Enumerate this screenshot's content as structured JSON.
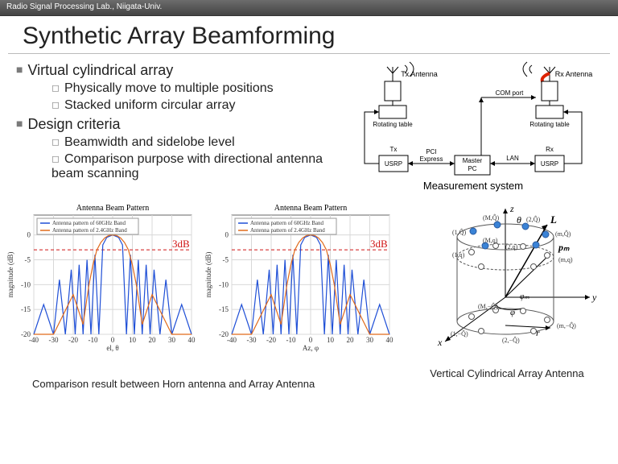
{
  "header": {
    "lab": "Radio Signal Processing Lab., Niigata-Univ."
  },
  "title": "Synthetic Array Beamforming",
  "bullets": [
    {
      "text": "Virtual cylindrical array",
      "sub": [
        "Physically move to multiple positions",
        "Stacked uniform circular array"
      ]
    },
    {
      "text": "Design criteria",
      "sub": [
        "Beamwidth and sidelobe level",
        "Comparison purpose with directional antenna beam scanning"
      ]
    }
  ],
  "measurement_diagram": {
    "caption": "Measurement system",
    "blocks": {
      "tx_ant": "Tx Antenna",
      "rx_ant": "Rx Antenna",
      "rot1": "Rotating\ntable",
      "rot2": "Rotating\ntable",
      "usrp_tx": "USRP",
      "usrp_rx": "USRP",
      "master": "Master\nPC",
      "tx": "Tx",
      "rx": "Rx",
      "pci": "PCI\nExpress",
      "lan": "LAN",
      "com": "COM port"
    }
  },
  "charts": {
    "shared": {
      "title": "Antenna Beam Pattern",
      "ylabel": "magnitude (dB)",
      "legend": [
        "Antenna pattern of 60GHz Band",
        "Antenna pattern of 2.4GHz Band"
      ],
      "legend_colors": [
        "#1f4fd6",
        "#e06a1b"
      ],
      "xlim": [
        -40,
        40
      ],
      "ylim": [
        -20,
        4
      ],
      "xticks": [
        -40,
        -30,
        -20,
        -10,
        0,
        10,
        20,
        30,
        40
      ],
      "yticks": [
        -20,
        -15,
        -10,
        -5,
        0
      ],
      "ref_line": -3,
      "ref_label": "3dB",
      "ref_color": "#d01515",
      "grid_color": "#d8d8d8",
      "bg": "#ffffff"
    },
    "left": {
      "xlabel": "el, θ"
    },
    "right": {
      "xlabel": "Az, φ"
    },
    "series_60": {
      "color": "#1f4fd6",
      "x": [
        -40,
        -35,
        -30,
        -27,
        -24,
        -21,
        -19,
        -17,
        -15,
        -13,
        -11,
        -9,
        -7,
        -5,
        -3,
        0,
        3,
        5,
        7,
        9,
        11,
        13,
        15,
        17,
        19,
        21,
        24,
        27,
        30,
        35,
        40
      ],
      "y": [
        -20,
        -14,
        -20,
        -9,
        -20,
        -7,
        -20,
        -6,
        -20,
        -5,
        -20,
        -4,
        -20,
        -2,
        -0.5,
        0,
        -0.5,
        -2,
        -20,
        -4,
        -20,
        -5,
        -20,
        -6,
        -20,
        -7,
        -20,
        -9,
        -20,
        -14,
        -20
      ]
    },
    "series_24": {
      "color": "#e06a1b",
      "x": [
        -40,
        -30,
        -25,
        -20,
        -15,
        -12,
        -10,
        -8,
        -6,
        -4,
        -2,
        0,
        2,
        4,
        6,
        8,
        10,
        12,
        15,
        20,
        25,
        30,
        40
      ],
      "y": [
        -20,
        -20,
        -16,
        -12,
        -18,
        -10,
        -6,
        -3,
        -1.5,
        -0.6,
        -0.1,
        0,
        -0.1,
        -0.6,
        -1.5,
        -3,
        -6,
        -10,
        -18,
        -12,
        -16,
        -20,
        -20
      ]
    },
    "caption": "Comparison result between Horn antenna and Array Antenna"
  },
  "cylinder": {
    "caption": "Vertical Cylindrical Array Antenna",
    "axis_labels": {
      "x": "x",
      "y": "y",
      "z": "z"
    },
    "node_labels": [
      "(M,Q̂)",
      "(1,Q̂)",
      "(M,q)",
      "(2,Q̂)",
      "(m,Q̂)",
      "pₘ",
      "(m,q)",
      "(1,q)",
      "(2,q)",
      "θ",
      "L",
      "φₘ",
      "φ",
      "r",
      "(M,−Q̂)",
      "(1,−Q̂)",
      "(2,−Q̂)",
      "(m,−Q̂)"
    ],
    "ring_color": "#555",
    "dot_fill": "#3a83d6",
    "dot_hollow": "#ffffff"
  }
}
